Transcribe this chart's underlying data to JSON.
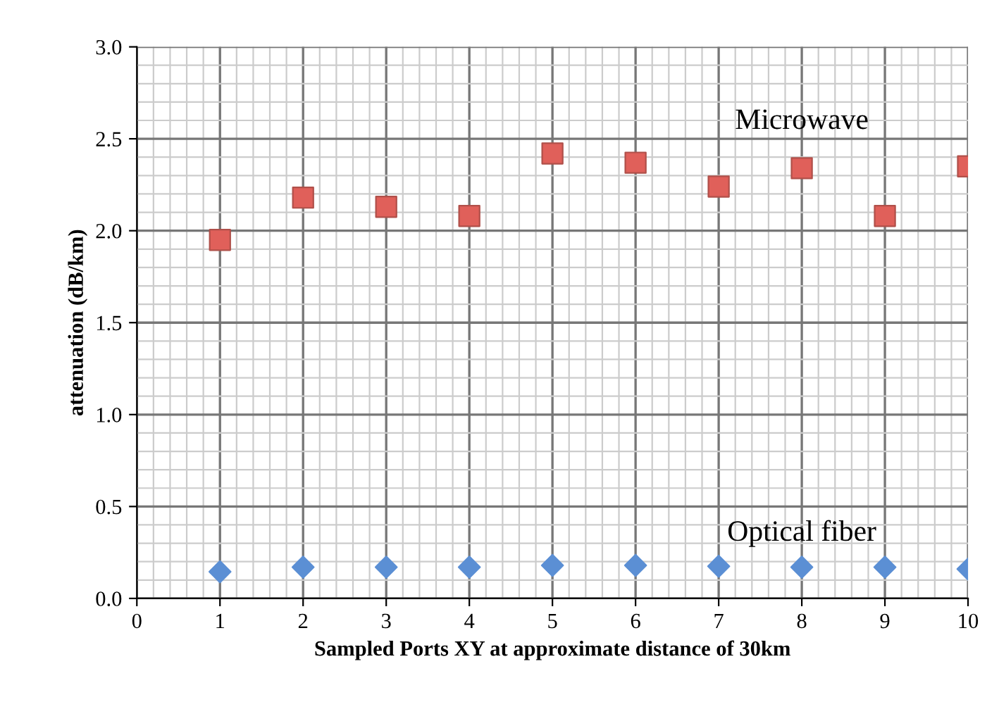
{
  "chart_data": {
    "type": "scatter",
    "xlabel": "Sampled Ports XY at approximate distance of 30km",
    "ylabel": "attenuation (dB/km)",
    "x": [
      1,
      2,
      3,
      4,
      5,
      6,
      7,
      8,
      9,
      10
    ],
    "series": [
      {
        "name": "Microwave",
        "color": "#e0605a",
        "marker": "square",
        "values": [
          1.95,
          2.18,
          2.13,
          2.08,
          2.42,
          2.37,
          2.24,
          2.34,
          2.08,
          2.35
        ]
      },
      {
        "name": "Optical fiber",
        "color": "#5b8fd4",
        "marker": "diamond",
        "values": [
          0.145,
          0.17,
          0.17,
          0.17,
          0.18,
          0.18,
          0.175,
          0.17,
          0.17,
          0.16
        ]
      }
    ],
    "xlim": [
      0,
      10
    ],
    "xticks": [
      0,
      1,
      2,
      3,
      4,
      5,
      6,
      7,
      8,
      9,
      10
    ],
    "ylim": [
      0,
      3.0
    ],
    "yticks": [
      {
        "value": 0,
        "label": "0.0"
      },
      0.5,
      {
        "value": 1,
        "label": "1.0"
      },
      1.5,
      {
        "value": 2,
        "label": "2.0"
      },
      2.5,
      {
        "value": 3,
        "label": "3.0"
      }
    ],
    "grid": true,
    "legend": false
  }
}
